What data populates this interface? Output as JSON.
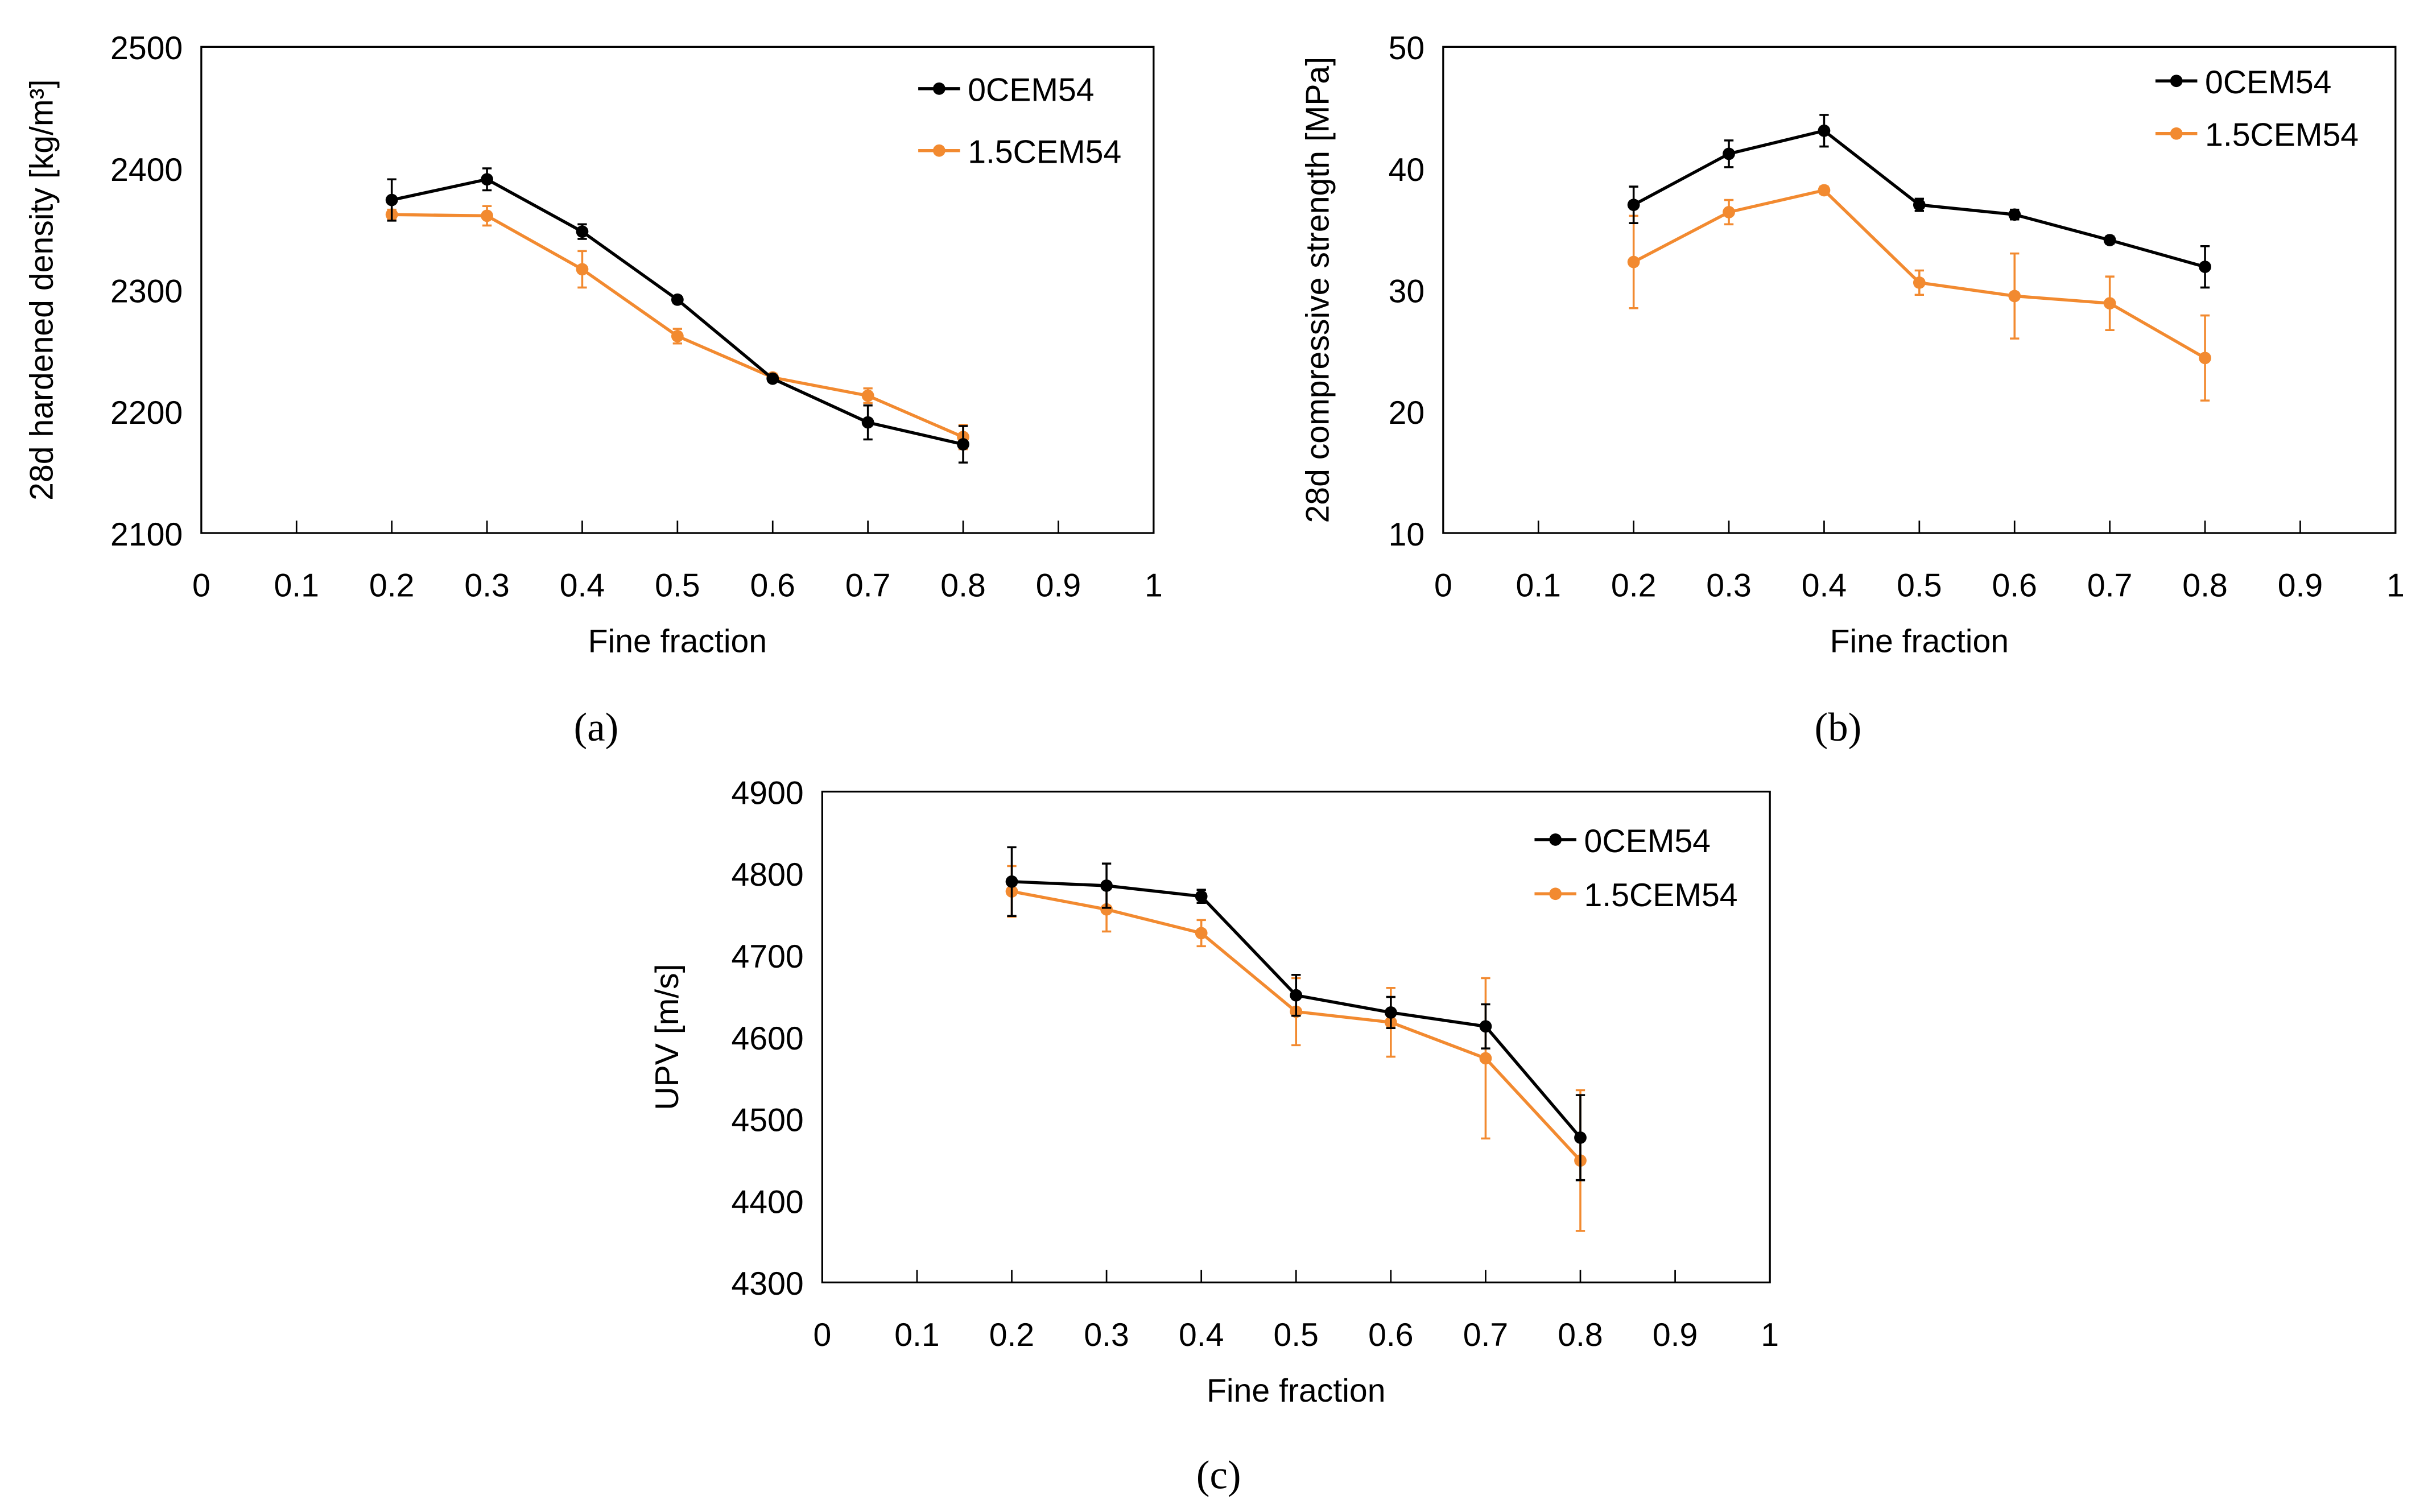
{
  "colors": {
    "series0": "#000000",
    "series1": "#f28a30"
  },
  "chart_data": [
    {
      "type": "line",
      "panel_label": "(a)",
      "xlabel": "Fine fraction",
      "ylabel": "28d hardened density [kg/m³]",
      "xlim": [
        0,
        1
      ],
      "ylim": [
        2100,
        2500
      ],
      "xticks": [
        "0",
        "0.1",
        "0.2",
        "0.3",
        "0.4",
        "0.5",
        "0.6",
        "0.7",
        "0.8",
        "0.9",
        "1"
      ],
      "yticks": [
        "2100",
        "2200",
        "2300",
        "2400",
        "2500"
      ],
      "legend_position": "top-right",
      "x": [
        0.2,
        0.3,
        0.4,
        0.5,
        0.6,
        0.7,
        0.8
      ],
      "series": [
        {
          "name": "0CEM54",
          "values": [
            2374,
            2391,
            2348,
            2292,
            2227,
            2191,
            2173
          ],
          "errors": [
            17,
            9,
            6,
            3,
            2,
            14,
            15
          ]
        },
        {
          "name": "1.5CEM54",
          "values": [
            2362,
            2361,
            2317,
            2262,
            2228,
            2213,
            2179
          ],
          "errors": [
            4,
            8,
            15,
            6,
            3,
            6,
            10
          ]
        }
      ]
    },
    {
      "type": "line",
      "panel_label": "(b)",
      "xlabel": "Fine fraction",
      "ylabel": "28d compressive strength [MPa]",
      "xlim": [
        0,
        1
      ],
      "ylim": [
        10,
        50
      ],
      "xticks": [
        "0",
        "0.1",
        "0.2",
        "0.3",
        "0.4",
        "0.5",
        "0.6",
        "0.7",
        "0.8",
        "0.9",
        "1"
      ],
      "yticks": [
        "10",
        "20",
        "30",
        "40",
        "50"
      ],
      "legend_position": "top-right",
      "x": [
        0.2,
        0.3,
        0.4,
        0.5,
        0.6,
        0.7,
        0.8
      ],
      "series": [
        {
          "name": "0CEM54",
          "values": [
            37.0,
            41.2,
            43.1,
            37.0,
            36.2,
            34.1,
            31.9
          ],
          "errors": [
            1.5,
            1.1,
            1.3,
            0.5,
            0.4,
            0.3,
            1.7
          ]
        },
        {
          "name": "1.5CEM54",
          "values": [
            32.3,
            36.4,
            38.2,
            30.6,
            29.5,
            28.9,
            24.4
          ],
          "errors": [
            3.8,
            1.0,
            0.3,
            1.0,
            3.5,
            2.2,
            3.5
          ]
        }
      ]
    },
    {
      "type": "line",
      "panel_label": "(c)",
      "xlabel": "Fine fraction",
      "ylabel": "UPV [m/s]",
      "xlim": [
        0,
        1
      ],
      "ylim": [
        4300,
        4900
      ],
      "xticks": [
        "0",
        "0.1",
        "0.2",
        "0.3",
        "0.4",
        "0.5",
        "0.6",
        "0.7",
        "0.8",
        "0.9",
        "1"
      ],
      "yticks": [
        "4300",
        "4400",
        "4500",
        "4600",
        "4700",
        "4800",
        "4900"
      ],
      "legend_position": "top-right",
      "x": [
        0.2,
        0.3,
        0.4,
        0.5,
        0.6,
        0.7,
        0.8
      ],
      "series": [
        {
          "name": "0CEM54",
          "values": [
            4790,
            4785,
            4772,
            4651,
            4630,
            4613,
            4477
          ],
          "errors": [
            42,
            27,
            8,
            25,
            19,
            27,
            52
          ]
        },
        {
          "name": "1.5CEM54",
          "values": [
            4778,
            4756,
            4727,
            4631,
            4618,
            4574,
            4449
          ],
          "errors": [
            31,
            27,
            16,
            41,
            42,
            98,
            86
          ]
        }
      ]
    }
  ]
}
